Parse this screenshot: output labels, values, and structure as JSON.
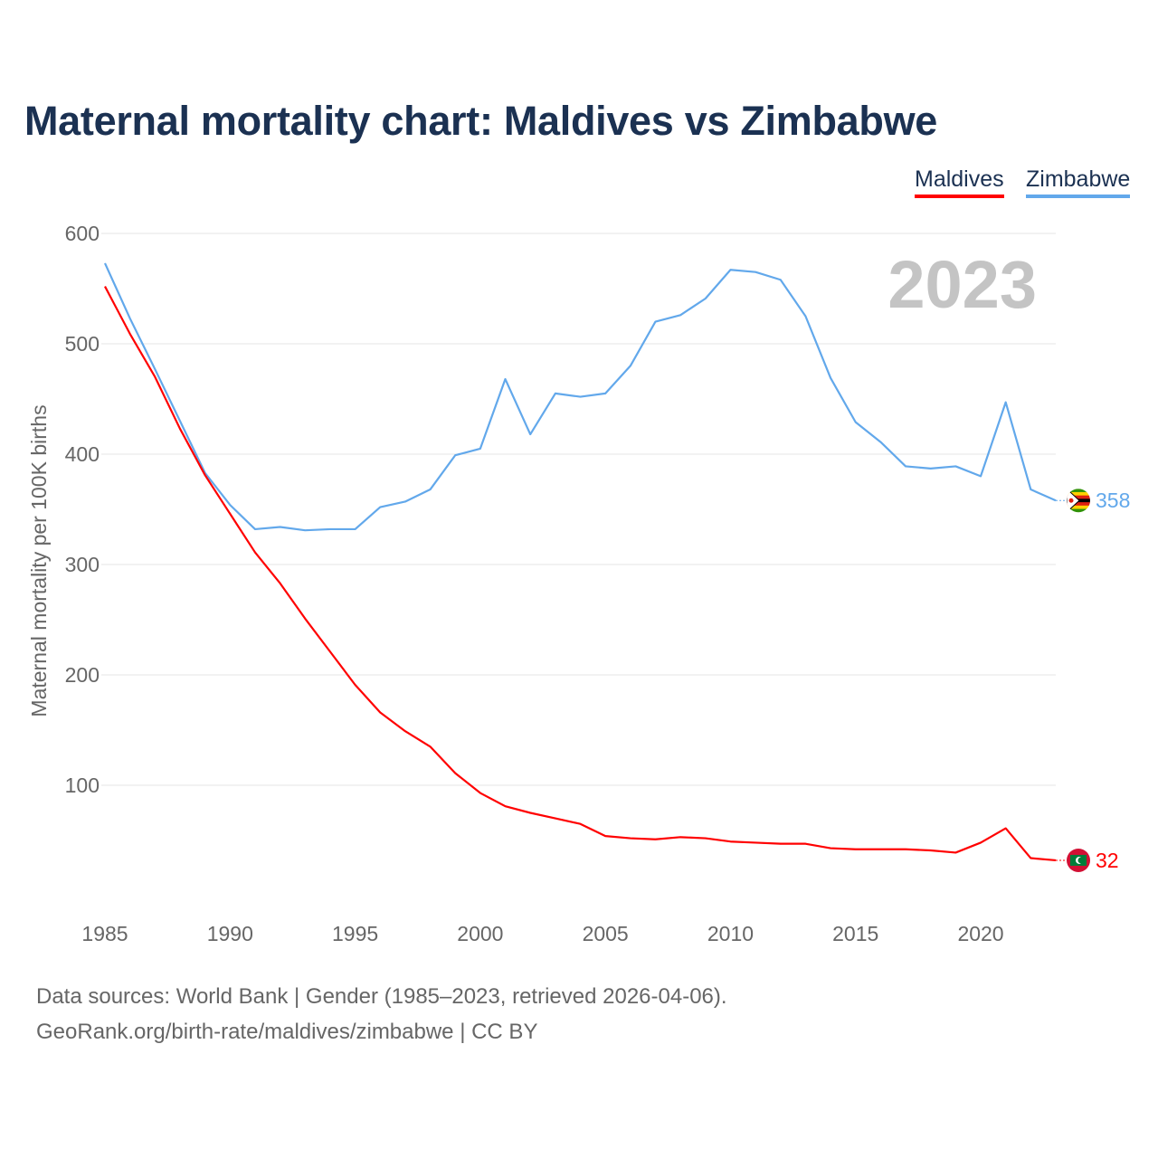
{
  "header": {
    "title": "Maternal mortality chart: Maldives vs Zimbabwe"
  },
  "legend": [
    {
      "label": "Maldives",
      "color": "#ff0000"
    },
    {
      "label": "Zimbabwe",
      "color": "#62a8eb"
    }
  ],
  "footer": {
    "source": "Data sources: World Bank | Gender (1985–2023, retrieved 2026-04-06).",
    "credit": "GeoRank.org/birth-rate/maldives/zimbabwe | CC BY"
  },
  "chart_data": {
    "type": "line",
    "title": "Maternal mortality chart: Maldives vs Zimbabwe",
    "ylabel": "Maternal mortality per 100K births",
    "xlabel": "",
    "year_watermark": "2023",
    "xlim": [
      1985,
      2023
    ],
    "ylim": [
      0,
      600
    ],
    "xticks": [
      "1985",
      "1990",
      "1995",
      "2000",
      "2005",
      "2010",
      "2015",
      "2020"
    ],
    "yticks": [
      "100",
      "200",
      "300",
      "400",
      "500",
      "600"
    ],
    "x": [
      1985,
      1986,
      1987,
      1988,
      1989,
      1990,
      1991,
      1992,
      1993,
      1994,
      1995,
      1996,
      1997,
      1998,
      1999,
      2000,
      2001,
      2002,
      2003,
      2004,
      2005,
      2006,
      2007,
      2008,
      2009,
      2010,
      2011,
      2012,
      2013,
      2014,
      2015,
      2016,
      2017,
      2018,
      2019,
      2020,
      2021,
      2022,
      2023
    ],
    "series": [
      {
        "name": "Maldives",
        "color": "#ff0000",
        "end_label": "32",
        "values": [
          552,
          509,
          470,
          423,
          381,
          346,
          311,
          283,
          251,
          221,
          191,
          166,
          149,
          135,
          111,
          93,
          81,
          75,
          70,
          65,
          54,
          52,
          51,
          53,
          52,
          49,
          48,
          47,
          47,
          43,
          42,
          42,
          42,
          41,
          39,
          48,
          61,
          34,
          32
        ]
      },
      {
        "name": "Zimbabwe",
        "color": "#62a8eb",
        "end_label": "358",
        "values": [
          573,
          523,
          477,
          430,
          383,
          354,
          332,
          334,
          331,
          332,
          332,
          352,
          357,
          368,
          399,
          405,
          468,
          418,
          455,
          452,
          455,
          480,
          520,
          526,
          541,
          567,
          565,
          558,
          525,
          469,
          429,
          411,
          389,
          387,
          389,
          380,
          447,
          368,
          358
        ]
      }
    ]
  }
}
